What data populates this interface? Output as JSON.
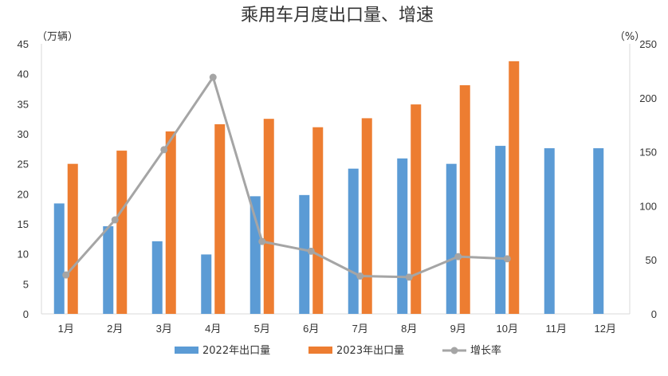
{
  "chart_data": {
    "type": "bar",
    "title": "乘用车月度出口量、增速",
    "y_left_unit": "（万辆）",
    "y_right_unit": "（%）",
    "categories": [
      "1月",
      "2月",
      "3月",
      "4月",
      "5月",
      "6月",
      "7月",
      "8月",
      "9月",
      "10月",
      "11月",
      "12月"
    ],
    "ylim_left": [
      0,
      45
    ],
    "yticks_left": [
      "0",
      "5",
      "10",
      "15",
      "20",
      "25",
      "30",
      "35",
      "40",
      "45"
    ],
    "ylim_right": [
      0,
      250
    ],
    "yticks_right": [
      "0",
      "50",
      "100",
      "150",
      "200",
      "250"
    ],
    "series": [
      {
        "name": "2022年出口量",
        "type": "bar",
        "axis": "left",
        "color": "#5b9bd5",
        "values": [
          18.4,
          14.6,
          12.1,
          9.9,
          19.6,
          19.8,
          24.2,
          25.9,
          25.0,
          28.0,
          27.6,
          27.6
        ]
      },
      {
        "name": "2023年出口量",
        "type": "bar",
        "axis": "left",
        "color": "#ed7d31",
        "values": [
          25.0,
          27.2,
          30.4,
          31.6,
          32.5,
          31.1,
          32.6,
          34.9,
          38.1,
          42.1,
          null,
          null
        ]
      },
      {
        "name": "增长率",
        "type": "line",
        "axis": "right",
        "color": "#a5a5a5",
        "values": [
          36,
          87,
          152,
          219,
          67,
          58,
          35,
          34,
          53,
          51,
          null,
          null
        ]
      }
    ],
    "grid": false,
    "legend_position": "bottom"
  }
}
